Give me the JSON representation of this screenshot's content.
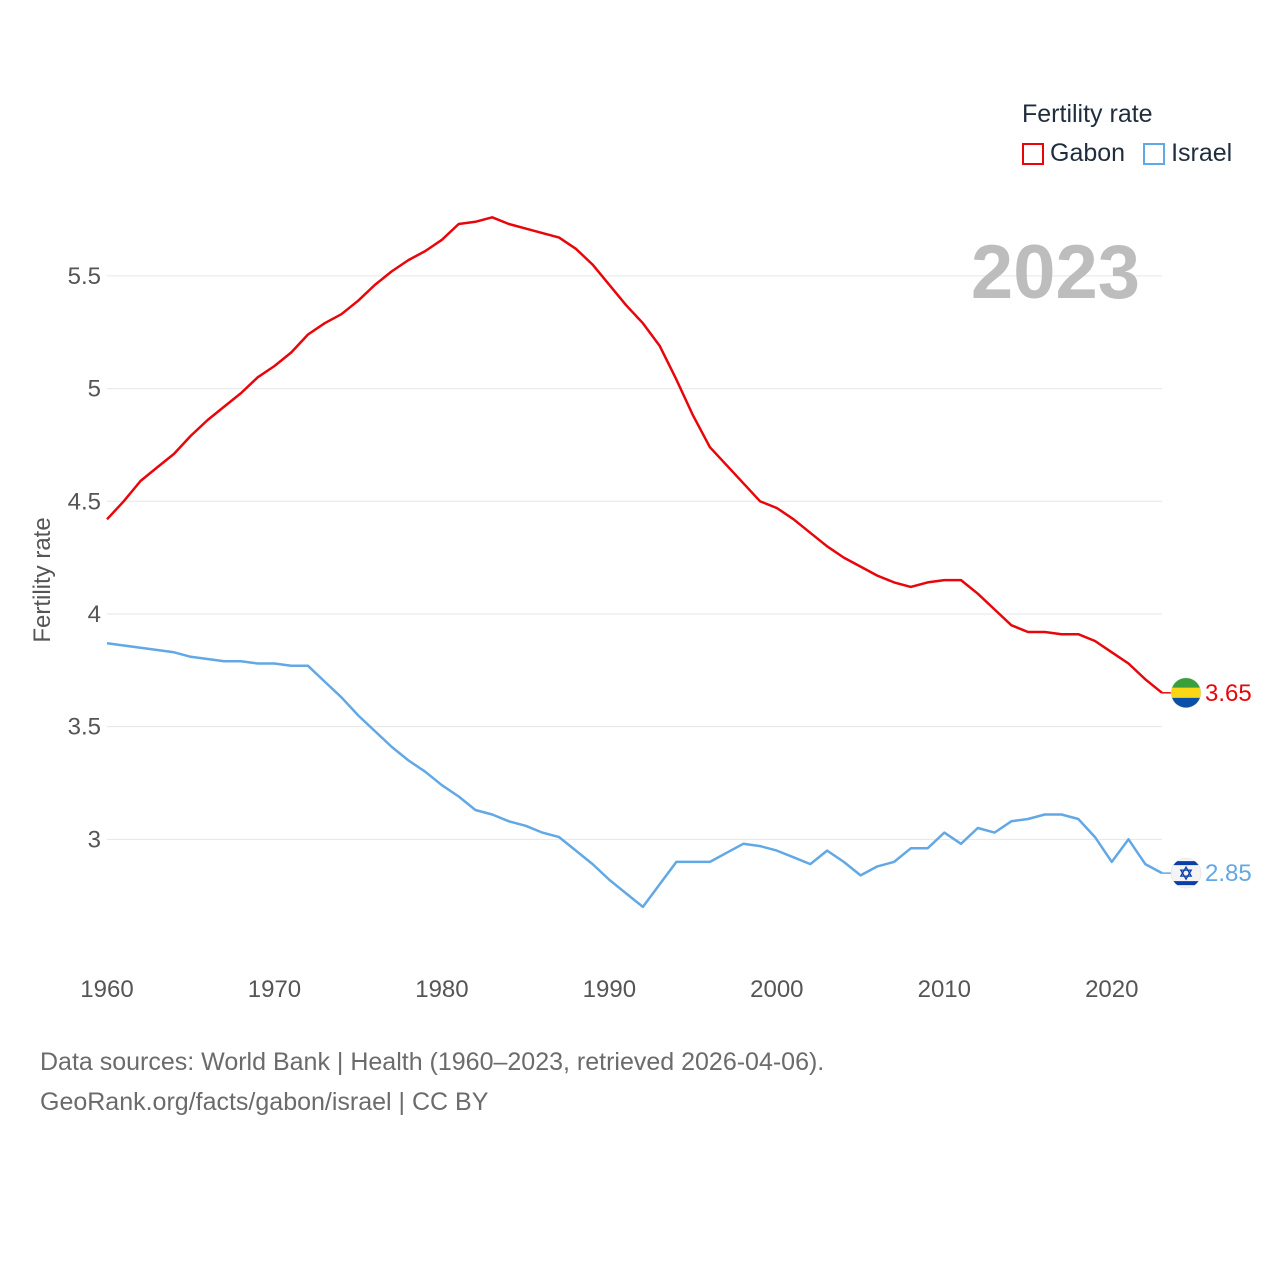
{
  "chart_data": {
    "type": "line",
    "year_label": "2023",
    "ylabel": "Fertility rate",
    "xlim": [
      1960,
      2023
    ],
    "ylim": [
      2.5,
      5.85
    ],
    "y_ticks": [
      3,
      3.5,
      4,
      4.5,
      5,
      5.5
    ],
    "y_tick_labels": [
      "3",
      "3.5",
      "4",
      "4.5",
      "5",
      "5.5"
    ],
    "x_ticks": [
      1960,
      1970,
      1980,
      1990,
      2000,
      2010,
      2020
    ],
    "x_tick_labels": [
      "1960",
      "1970",
      "1980",
      "1990",
      "2000",
      "2010",
      "2020"
    ],
    "grid": true,
    "legend": {
      "title": "Fertility rate",
      "position": "top-right"
    },
    "x": [
      1960,
      1961,
      1962,
      1963,
      1964,
      1965,
      1966,
      1967,
      1968,
      1969,
      1970,
      1971,
      1972,
      1973,
      1974,
      1975,
      1976,
      1977,
      1978,
      1979,
      1980,
      1981,
      1982,
      1983,
      1984,
      1985,
      1986,
      1987,
      1988,
      1989,
      1990,
      1991,
      1992,
      1993,
      1994,
      1995,
      1996,
      1997,
      1998,
      1999,
      2000,
      2001,
      2002,
      2003,
      2004,
      2005,
      2006,
      2007,
      2008,
      2009,
      2010,
      2011,
      2012,
      2013,
      2014,
      2015,
      2016,
      2017,
      2018,
      2019,
      2020,
      2021,
      2022,
      2023
    ],
    "series": [
      {
        "name": "Gabon",
        "color": "#e8060b",
        "end_label": "3.65",
        "flag": "gabon-flag-icon",
        "values": [
          4.42,
          4.5,
          4.59,
          4.65,
          4.71,
          4.79,
          4.86,
          4.92,
          4.98,
          5.05,
          5.1,
          5.16,
          5.24,
          5.29,
          5.33,
          5.39,
          5.46,
          5.52,
          5.57,
          5.61,
          5.66,
          5.73,
          5.74,
          5.76,
          5.73,
          5.71,
          5.69,
          5.67,
          5.62,
          5.55,
          5.46,
          5.37,
          5.29,
          5.19,
          5.04,
          4.88,
          4.74,
          4.66,
          4.58,
          4.5,
          4.47,
          4.42,
          4.36,
          4.3,
          4.25,
          4.21,
          4.17,
          4.14,
          4.12,
          4.14,
          4.15,
          4.15,
          4.09,
          4.02,
          3.95,
          3.92,
          3.92,
          3.91,
          3.91,
          3.88,
          3.83,
          3.78,
          3.71,
          3.65
        ]
      },
      {
        "name": "Israel",
        "color": "#62a8e5",
        "end_label": "2.85",
        "flag": "israel-flag-icon",
        "values": [
          3.87,
          3.86,
          3.85,
          3.84,
          3.83,
          3.81,
          3.8,
          3.79,
          3.79,
          3.78,
          3.78,
          3.77,
          3.77,
          3.7,
          3.63,
          3.55,
          3.48,
          3.41,
          3.35,
          3.3,
          3.24,
          3.19,
          3.13,
          3.11,
          3.08,
          3.06,
          3.03,
          3.01,
          2.95,
          2.89,
          2.82,
          2.76,
          2.7,
          2.8,
          2.9,
          2.9,
          2.9,
          2.94,
          2.98,
          2.97,
          2.95,
          2.92,
          2.89,
          2.95,
          2.9,
          2.84,
          2.88,
          2.9,
          2.96,
          2.96,
          3.03,
          2.98,
          3.05,
          3.03,
          3.08,
          3.09,
          3.11,
          3.11,
          3.09,
          3.01,
          2.9,
          3.0,
          2.89,
          2.85
        ]
      }
    ]
  },
  "footer": {
    "line1": "Data sources: World Bank | Health (1960–2023, retrieved 2026-04-06).",
    "line2": "GeoRank.org/facts/gabon/israel | CC BY"
  }
}
